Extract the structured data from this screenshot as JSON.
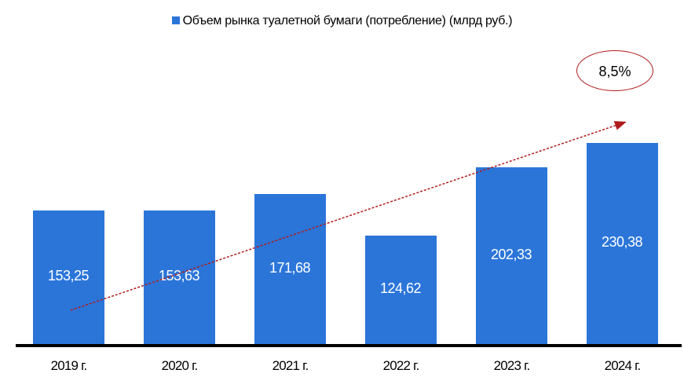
{
  "chart_data": {
    "type": "bar",
    "title": "",
    "legend": [
      "Объем рынка туалетной бумаги (потребление) (млрд руб.)"
    ],
    "legend_position": "top",
    "categories": [
      "2019 г.",
      "2020 г.",
      "2021 г.",
      "2022 г.",
      "2023 г.",
      "2024 г."
    ],
    "series": [
      {
        "name": "Объем рынка туалетной бумаги (потребление) (млрд руб.)",
        "values": [
          153.25,
          153.63,
          171.68,
          124.62,
          202.33,
          230.38
        ],
        "labels": [
          "153,25",
          "153,63",
          "171,68",
          "124,62",
          "202,33",
          "230,38"
        ],
        "color": "#2b75d9"
      }
    ],
    "annotations": [
      {
        "type": "trend-arrow",
        "style": "dashed",
        "color": "#b01c1c"
      },
      {
        "type": "ellipse-label",
        "text": "8,5%"
      }
    ],
    "xlabel": "",
    "ylabel": "",
    "grid": false,
    "y_axis_visible": false
  },
  "legend": {
    "label": "Объем рынка туалетной бумаги (потребление) (млрд руб.)",
    "color": "#2b75d9"
  },
  "annotation": {
    "cagr": "8,5%",
    "trend_color": "#b01c1c"
  }
}
